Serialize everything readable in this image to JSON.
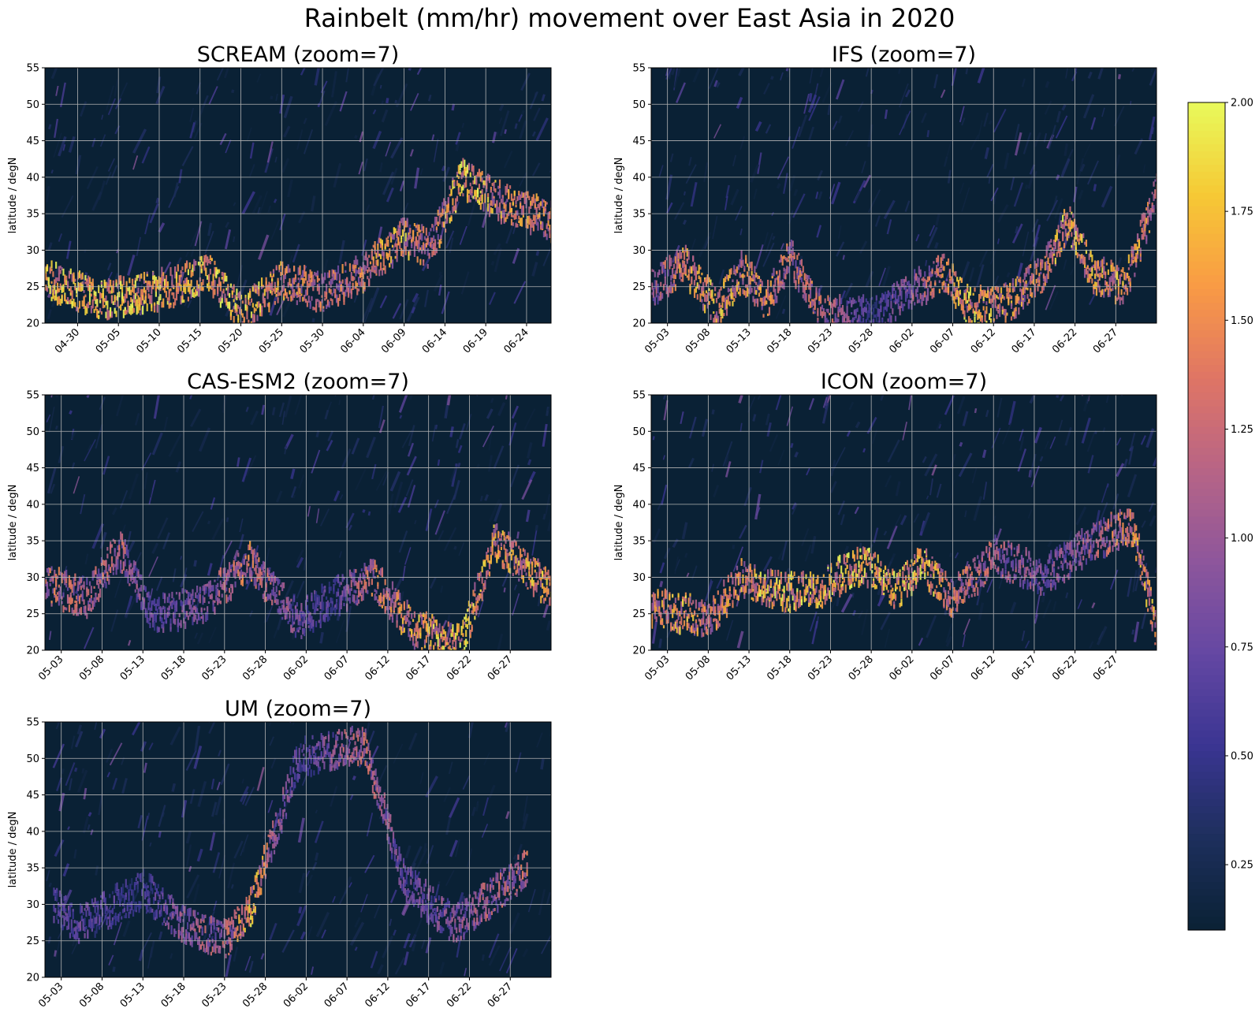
{
  "title": "Rainbelt (mm/hr) movement over East Asia in 2020",
  "colors": {
    "background": "#0a2135",
    "grid": "#b3b3b3",
    "colormap": [
      "#0a2135",
      "#1d2f5c",
      "#3a3592",
      "#6447a3",
      "#8d569c",
      "#b76486",
      "#df7565",
      "#f99a45",
      "#f6c935",
      "#e8fa5b"
    ]
  },
  "chart_data": [
    {
      "type": "heatmap",
      "title": "SCREAM (zoom=7)",
      "ylabel": "latitude / degN",
      "xlabel": "",
      "ylim": [
        20,
        55
      ],
      "xlim": [
        "2020-04-26",
        "2020-06-27"
      ],
      "yticks": [
        "20",
        "25",
        "30",
        "35",
        "40",
        "45",
        "50",
        "55"
      ],
      "xticks": [
        "04-30",
        "05-05",
        "05-10",
        "05-15",
        "05-20",
        "05-25",
        "05-30",
        "06-04",
        "06-09",
        "06-14",
        "06-19",
        "06-24"
      ],
      "grid": true,
      "rainbelt": {
        "dates": [
          "2020-04-26",
          "2020-05-03",
          "2020-05-07",
          "2020-05-12",
          "2020-05-16",
          "2020-05-20",
          "2020-05-25",
          "2020-05-30",
          "2020-06-04",
          "2020-06-09",
          "2020-06-12",
          "2020-06-16",
          "2020-06-20",
          "2020-06-27"
        ],
        "lat": [
          26,
          23,
          24,
          25,
          27,
          21,
          26,
          24,
          27,
          32,
          30,
          40,
          37,
          34
        ],
        "intensity": [
          1.8,
          1.9,
          1.8,
          1.7,
          1.9,
          1.8,
          1.6,
          1.3,
          1.5,
          1.7,
          1.3,
          1.9,
          1.6,
          1.5
        ]
      }
    },
    {
      "type": "heatmap",
      "title": "IFS (zoom=7)",
      "ylabel": "latitude / degN",
      "xlabel": "",
      "ylim": [
        20,
        55
      ],
      "xlim": [
        "2020-05-01",
        "2020-07-02"
      ],
      "yticks": [
        "20",
        "25",
        "30",
        "35",
        "40",
        "45",
        "50",
        "55"
      ],
      "xticks": [
        "05-03",
        "05-08",
        "05-13",
        "05-18",
        "05-23",
        "05-28",
        "06-02",
        "06-07",
        "06-12",
        "06-17",
        "06-22",
        "06-27"
      ],
      "grid": true,
      "rainbelt": {
        "dates": [
          "2020-05-01",
          "2020-05-05",
          "2020-05-09",
          "2020-05-12",
          "2020-05-15",
          "2020-05-18",
          "2020-05-22",
          "2020-05-28",
          "2020-06-06",
          "2020-06-09",
          "2020-06-14",
          "2020-06-18",
          "2020-06-21",
          "2020-06-24",
          "2020-06-28",
          "2020-07-02"
        ],
        "lat": [
          25,
          28,
          22,
          27,
          23,
          29,
          21,
          21,
          27,
          22,
          23,
          27,
          34,
          27,
          25,
          38
        ],
        "intensity": [
          1.0,
          1.6,
          1.7,
          1.6,
          1.5,
          1.3,
          1.4,
          0.6,
          1.5,
          1.8,
          1.6,
          1.4,
          1.9,
          1.7,
          1.6,
          1.5
        ]
      }
    },
    {
      "type": "heatmap",
      "title": "CAS-ESM2 (zoom=7)",
      "ylabel": "latitude / degN",
      "xlabel": "",
      "ylim": [
        20,
        55
      ],
      "xlim": [
        "2020-05-01",
        "2020-07-02"
      ],
      "yticks": [
        "20",
        "25",
        "30",
        "35",
        "40",
        "45",
        "50",
        "55"
      ],
      "xticks": [
        "05-03",
        "05-08",
        "05-13",
        "05-18",
        "05-23",
        "05-28",
        "06-02",
        "06-07",
        "06-12",
        "06-17",
        "06-22",
        "06-27"
      ],
      "grid": true,
      "rainbelt": {
        "dates": [
          "2020-05-01",
          "2020-05-06",
          "2020-05-10",
          "2020-05-14",
          "2020-05-20",
          "2020-05-26",
          "2020-06-01",
          "2020-06-05",
          "2020-06-10",
          "2020-06-15",
          "2020-06-21",
          "2020-06-25",
          "2020-07-02"
        ],
        "lat": [
          29,
          27,
          34,
          25,
          26,
          32,
          24,
          27,
          30,
          23,
          21,
          35,
          28
        ],
        "intensity": [
          1.4,
          1.2,
          1.3,
          0.8,
          1.0,
          1.4,
          0.9,
          0.7,
          1.4,
          1.6,
          1.9,
          1.6,
          1.7
        ]
      }
    },
    {
      "type": "heatmap",
      "title": "ICON (zoom=7)",
      "ylabel": "latitude / degN",
      "xlabel": "",
      "ylim": [
        20,
        55
      ],
      "xlim": [
        "2020-05-01",
        "2020-07-02"
      ],
      "yticks": [
        "20",
        "25",
        "30",
        "35",
        "40",
        "45",
        "50",
        "55"
      ],
      "xticks": [
        "05-03",
        "05-08",
        "05-13",
        "05-18",
        "05-23",
        "05-28",
        "06-02",
        "06-07",
        "06-12",
        "06-17",
        "06-22",
        "06-27"
      ],
      "grid": true,
      "rainbelt": {
        "dates": [
          "2020-05-01",
          "2020-05-05",
          "2020-05-08",
          "2020-05-12",
          "2020-05-17",
          "2020-05-21",
          "2020-05-27",
          "2020-05-31",
          "2020-06-03",
          "2020-06-07",
          "2020-06-12",
          "2020-06-18",
          "2020-06-24",
          "2020-06-29",
          "2020-07-02"
        ],
        "lat": [
          26,
          25,
          24,
          30,
          28,
          28,
          32,
          28,
          32,
          27,
          33,
          30,
          35,
          37,
          22
        ],
        "intensity": [
          1.5,
          1.7,
          1.4,
          1.6,
          1.9,
          1.7,
          1.9,
          1.8,
          1.9,
          1.4,
          1.2,
          0.9,
          1.1,
          1.6,
          1.7
        ]
      }
    },
    {
      "type": "heatmap",
      "title": "UM (zoom=7)",
      "ylabel": "latitude / degN",
      "xlabel": "",
      "ylim": [
        20,
        55
      ],
      "xlim": [
        "2020-05-01",
        "2020-07-02"
      ],
      "yticks": [
        "20",
        "25",
        "30",
        "35",
        "40",
        "45",
        "50",
        "55"
      ],
      "xticks": [
        "05-03",
        "05-08",
        "05-13",
        "05-18",
        "05-23",
        "05-28",
        "06-02",
        "06-07",
        "06-12",
        "06-17",
        "06-22",
        "06-27"
      ],
      "grid": true,
      "rainbelt": {
        "dates": [
          "2020-05-02",
          "2020-05-05",
          "2020-05-13",
          "2020-05-18",
          "2020-05-23",
          "2020-05-26",
          "2020-06-01",
          "2020-06-09",
          "2020-06-14",
          "2020-06-20",
          "2020-06-29"
        ],
        "lat": [
          30,
          27,
          32,
          27,
          25,
          29,
          50,
          52,
          33,
          27,
          35
        ],
        "intensity": [
          0.7,
          0.8,
          0.6,
          1.1,
          1.2,
          1.8,
          0.7,
          1.3,
          0.8,
          1.0,
          1.3
        ]
      }
    }
  ],
  "colorbar": {
    "vmin": 0.1,
    "vmax": 2.0,
    "ticks": [
      "0.25",
      "0.50",
      "0.75",
      "1.00",
      "1.25",
      "1.50",
      "1.75",
      "2.00"
    ]
  }
}
